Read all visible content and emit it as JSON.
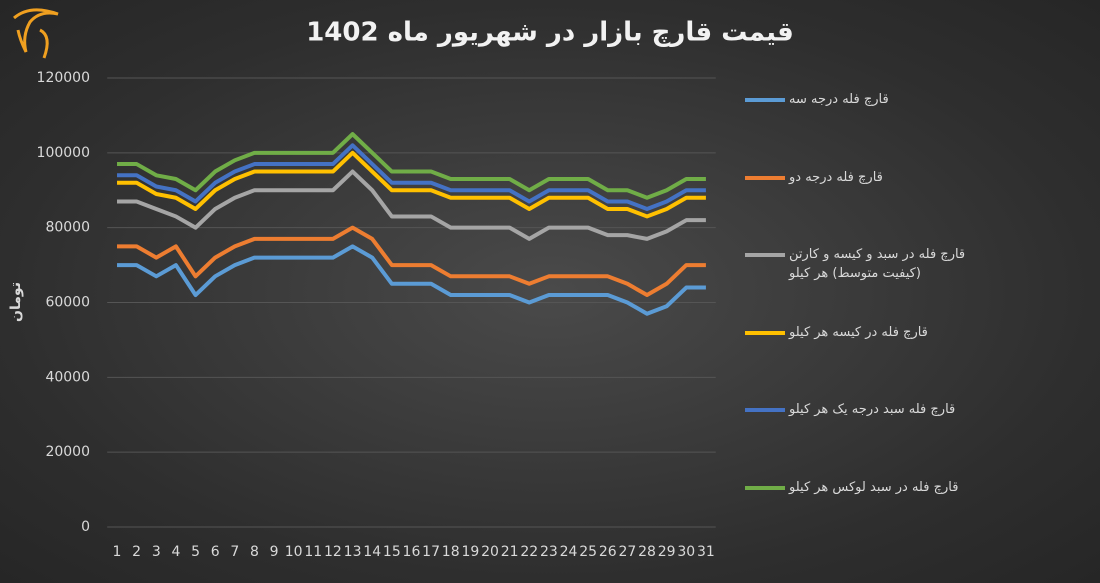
{
  "chart_data": {
    "type": "line",
    "title": "قیمت قارچ بازار در شهریور ماه 1402",
    "y_label": "تومان",
    "categories": [
      "1",
      "2",
      "3",
      "4",
      "5",
      "6",
      "7",
      "8",
      "9",
      "10",
      "11",
      "12",
      "13",
      "14",
      "15",
      "16",
      "17",
      "18",
      "19",
      "20",
      "21",
      "22",
      "23",
      "24",
      "25",
      "26",
      "27",
      "28",
      "29",
      "30",
      "31"
    ],
    "ylim": [
      0,
      120000
    ],
    "yticks": [
      0,
      20000,
      40000,
      60000,
      80000,
      100000,
      120000
    ],
    "grid": true,
    "legend": "right",
    "series": [
      {
        "name": "قارچ فله درجه سه",
        "color": "#5b9bd5",
        "values": [
          70000,
          70000,
          67000,
          70000,
          62000,
          67000,
          70000,
          72000,
          72000,
          72000,
          72000,
          72000,
          75000,
          72000,
          65000,
          65000,
          65000,
          62000,
          62000,
          62000,
          62000,
          60000,
          62000,
          62000,
          62000,
          62000,
          60000,
          57000,
          59000,
          64000,
          64000
        ]
      },
      {
        "name": "قارچ فله درجه دو",
        "color": "#ed7d31",
        "values": [
          75000,
          75000,
          72000,
          75000,
          67000,
          72000,
          75000,
          77000,
          77000,
          77000,
          77000,
          77000,
          80000,
          77000,
          70000,
          70000,
          70000,
          67000,
          67000,
          67000,
          67000,
          65000,
          67000,
          67000,
          67000,
          67000,
          65000,
          62000,
          65000,
          70000,
          70000
        ]
      },
      {
        "name": "قارچ فله در سبد و کیسه و کارتن (کیفیت متوسط) هر کیلو",
        "color": "#a5a5a5",
        "values": [
          87000,
          87000,
          85000,
          83000,
          80000,
          85000,
          88000,
          90000,
          90000,
          90000,
          90000,
          90000,
          95000,
          90000,
          83000,
          83000,
          83000,
          80000,
          80000,
          80000,
          80000,
          77000,
          80000,
          80000,
          80000,
          78000,
          78000,
          77000,
          79000,
          82000,
          82000
        ]
      },
      {
        "name": "قارچ فله در کیسه هر کیلو",
        "color": "#ffc000",
        "values": [
          92000,
          92000,
          89000,
          88000,
          85000,
          90000,
          93000,
          95000,
          95000,
          95000,
          95000,
          95000,
          100000,
          95000,
          90000,
          90000,
          90000,
          88000,
          88000,
          88000,
          88000,
          85000,
          88000,
          88000,
          88000,
          85000,
          85000,
          83000,
          85000,
          88000,
          88000
        ]
      },
      {
        "name": "قارچ فله سبد درجه یک هر کیلو",
        "color": "#4472c4",
        "values": [
          94000,
          94000,
          91000,
          90000,
          87000,
          92000,
          95000,
          97000,
          97000,
          97000,
          97000,
          97000,
          102000,
          97000,
          92000,
          92000,
          92000,
          90000,
          90000,
          90000,
          90000,
          87000,
          90000,
          90000,
          90000,
          87000,
          87000,
          85000,
          87000,
          90000,
          90000
        ]
      },
      {
        "name": "قارچ فله در سبد لوکس هر کیلو",
        "color": "#70ad47",
        "values": [
          97000,
          97000,
          94000,
          93000,
          90000,
          95000,
          98000,
          100000,
          100000,
          100000,
          100000,
          100000,
          105000,
          100000,
          95000,
          95000,
          95000,
          93000,
          93000,
          93000,
          93000,
          90000,
          93000,
          93000,
          93000,
          90000,
          90000,
          88000,
          90000,
          93000,
          93000
        ]
      }
    ]
  }
}
